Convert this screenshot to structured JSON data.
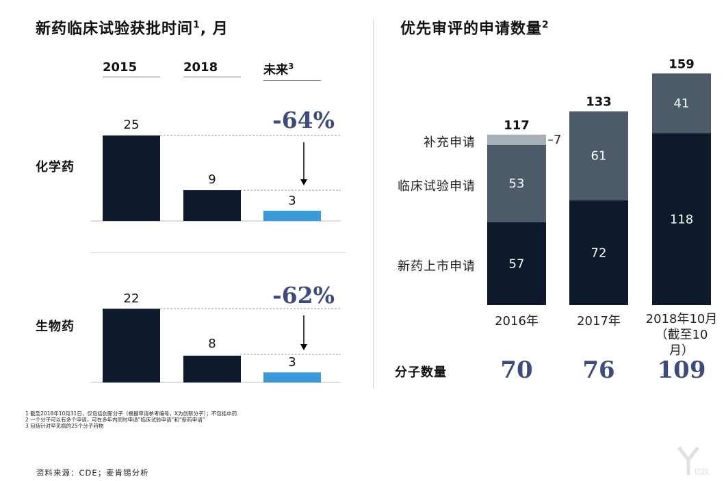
{
  "left": {
    "title": "新药临床试验获批时间",
    "title_sup": "1",
    "title_suffix": ", 月",
    "years": [
      "2015",
      "2018",
      "未来"
    ],
    "future_sup": "3",
    "rows": [
      {
        "label": "化学药",
        "values": [
          25,
          9,
          3
        ],
        "change": "-64%"
      },
      {
        "label": "生物药",
        "values": [
          22,
          8,
          3
        ],
        "change": "-62%"
      }
    ],
    "colors": {
      "past": "#0e1a2b",
      "future": "#3a9ad9",
      "accent": "#3d4c7c"
    }
  },
  "right": {
    "title": "优先审评的申请数量",
    "title_sup": "2",
    "category_labels": [
      "补充申请",
      "临床试验申请",
      "新药上市申请"
    ],
    "molecules_label": "分子数量",
    "molecules": [
      "70",
      "76",
      "109"
    ]
  },
  "chart_data": {
    "type": "bar",
    "stacked": true,
    "categories": [
      "2016年",
      "2017年",
      "2018年10月（截至10月）"
    ],
    "series": [
      {
        "name": "新药上市申请",
        "values": [
          57,
          72,
          118
        ],
        "color": "#0e1a2b"
      },
      {
        "name": "临床试验申请",
        "values": [
          53,
          61,
          41
        ],
        "color": "#4d5a67"
      },
      {
        "name": "补充申请",
        "values": [
          7,
          0,
          0
        ],
        "color": "#a7afb7"
      }
    ],
    "totals": [
      117,
      133,
      159
    ]
  },
  "xlabels": {
    "y2016": "2016年",
    "y2017": "2017年",
    "y2018_line1": "2018年10月",
    "y2018_line2": "（截至10",
    "y2018_line3": "月）"
  },
  "footnotes": [
    "1 截至2018年10月31日，仅包括创新分子（根据申请参考编号，X为创新分子）；不包括中药",
    "2 一个分子可以有多个申请，可在多年内同时申请“临床试验申请”和“新药申请”",
    "3 包括针对罕见病的25个分子药物"
  ],
  "source": "资料来源：CDE；麦肯锡分析",
  "watermark": "亿欧"
}
